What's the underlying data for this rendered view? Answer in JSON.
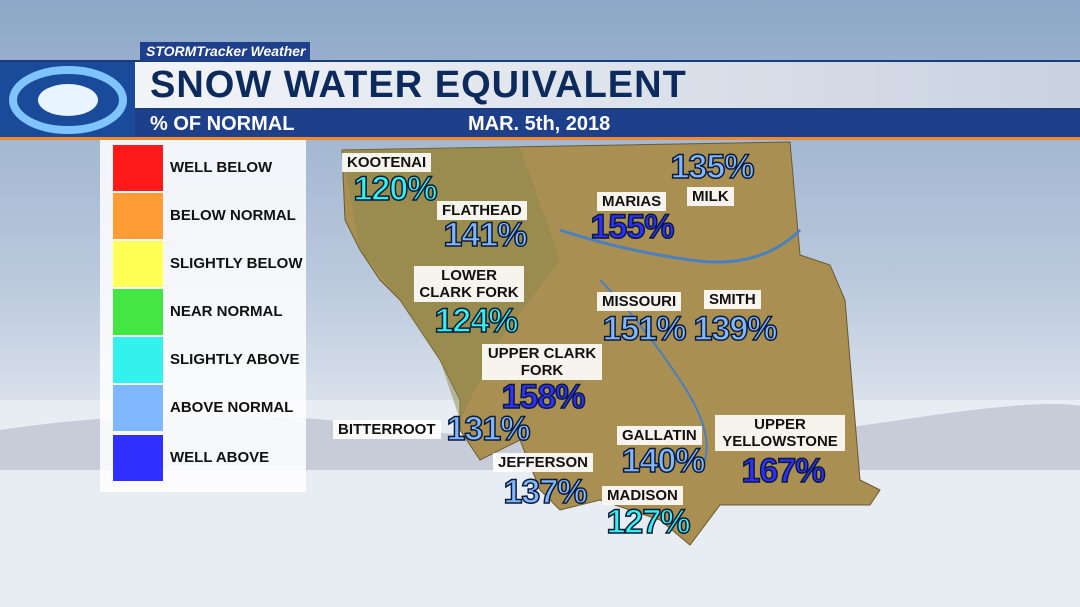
{
  "header": {
    "brand": "STORMTracker Weather",
    "title": "SNOW WATER EQUIVALENT",
    "subtitle": "% OF NORMAL",
    "date": "MAR. 5th, 2018"
  },
  "legend": [
    {
      "label": "WELL BELOW",
      "color": "#ff1a1a"
    },
    {
      "label": "BELOW NORMAL",
      "color": "#ff9c33"
    },
    {
      "label": "SLIGHTLY BELOW",
      "color": "#ffff55"
    },
    {
      "label": "NEAR NORMAL",
      "color": "#44e644"
    },
    {
      "label": "SLIGHTLY ABOVE",
      "color": "#33f2ee"
    },
    {
      "label": "ABOVE NORMAL",
      "color": "#80b8ff"
    },
    {
      "label": "WELL ABOVE",
      "color": "#2f2fff"
    }
  ],
  "basins": [
    {
      "name": "KOOTENAI",
      "value": "120%",
      "color": "#33f2ee"
    },
    {
      "name": "FLATHEAD",
      "value": "141%",
      "color": "#80b8ff"
    },
    {
      "name": "MARIAS",
      "value": "155%",
      "color": "#2f2fff"
    },
    {
      "name": "MILK",
      "value": "135%",
      "color": "#80b8ff"
    },
    {
      "name": "LOWER CLARK FORK",
      "value": "124%",
      "color": "#33f2ee"
    },
    {
      "name": "MISSOURI",
      "value": "151%",
      "color": "#80b8ff"
    },
    {
      "name": "SMITH",
      "value": "139%",
      "color": "#80b8ff"
    },
    {
      "name": "UPPER CLARK FORK",
      "value": "158%",
      "color": "#2f2fff"
    },
    {
      "name": "BITTERROOT",
      "value": "131%",
      "color": "#80b8ff"
    },
    {
      "name": "JEFFERSON",
      "value": "137%",
      "color": "#80b8ff"
    },
    {
      "name": "GALLATIN",
      "value": "140%",
      "color": "#80b8ff"
    },
    {
      "name": "MADISON",
      "value": "127%",
      "color": "#33f2ee"
    },
    {
      "name": "UPPER YELLOWSTONE",
      "value": "167%",
      "color": "#2f2fff"
    }
  ]
}
